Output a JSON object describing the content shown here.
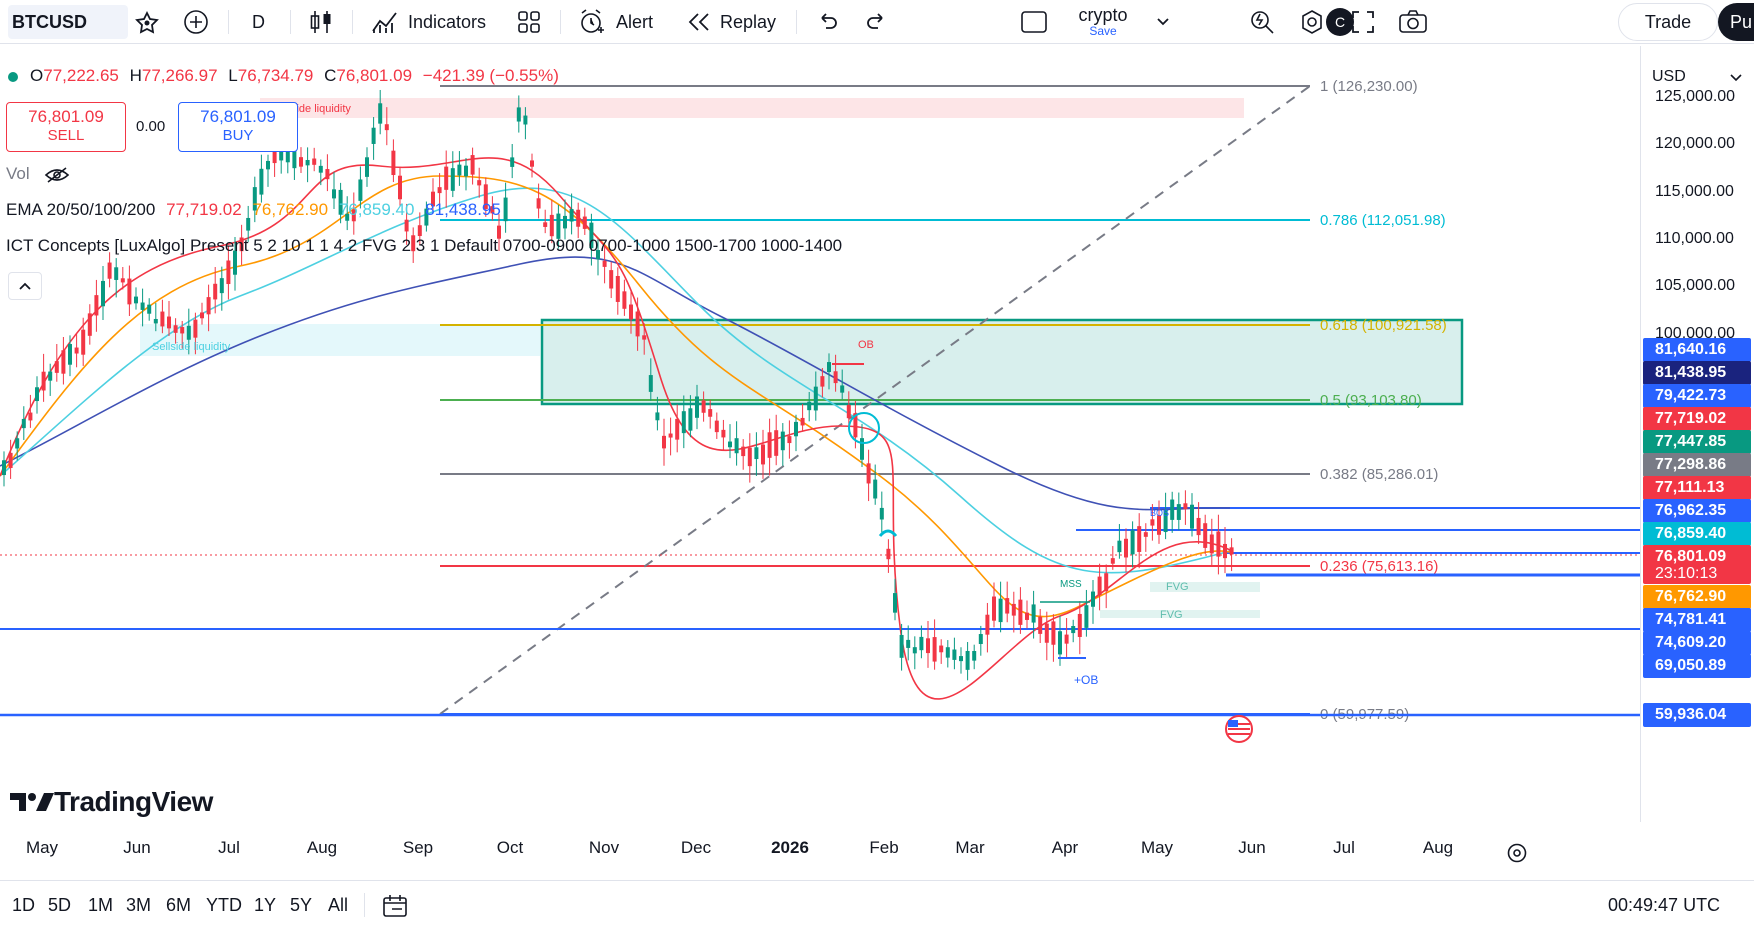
{
  "toolbar": {
    "symbol": "BTCUSD",
    "interval": "D",
    "indicators_label": "Indicators",
    "alert_label": "Alert",
    "replay_label": "Replay",
    "layout_name": "crypto",
    "save_label": "Save",
    "avatar_letter": "C",
    "trade_label": "Trade",
    "publish_label": "Pu"
  },
  "legend": {
    "open_key": "O",
    "open": "77,222.65",
    "high_key": "H",
    "high": "77,266.97",
    "low_key": "L",
    "low": "76,734.79",
    "close_key": "C",
    "close": "76,801.09",
    "change": "−421.39 (−0.55%)",
    "sell_price": "76,801.09",
    "sell_label": "SELL",
    "spread": "0.00",
    "buy_price": "76,801.09",
    "buy_label": "BUY",
    "vol_label": "Vol",
    "ema_label": "EMA 20/50/100/200",
    "ema_values": [
      "77,719.02",
      "76,762.90",
      "76,859.40",
      "81,438.95"
    ],
    "ema_colors": [
      "#f23645",
      "#ff9800",
      "#4dd0e1",
      "#2962ff"
    ],
    "ict_label": "ICT Concepts [LuxAlgo] Present 5 2 10 1 1 4 2 FVG 2 3 1 Default 0700-0900 0700-1000 1500-1700 1000-1400"
  },
  "chart_data": {
    "type": "candlestick",
    "symbol": "BTCUSD",
    "interval": "1D",
    "currency": "USD",
    "y_ticks": [
      "125,000.00",
      "120,000.00",
      "115,000.00",
      "110,000.00",
      "105,000.00",
      "100,000.00"
    ],
    "x_ticks": [
      "May",
      "Jun",
      "Jul",
      "Aug",
      "Sep",
      "Oct",
      "Nov",
      "Dec",
      "2026",
      "Feb",
      "Mar",
      "Apr",
      "May",
      "Jun",
      "Jul",
      "Aug"
    ],
    "fib_levels": [
      {
        "label": "1 (126,230.00)",
        "price": 126230.0,
        "color": "#787b86"
      },
      {
        "label": "0.786 (112,051.98)",
        "price": 112051.98,
        "color": "#00bcd4"
      },
      {
        "label": "0.618 (100,921.58)",
        "price": 100921.58,
        "color": "#d4b300"
      },
      {
        "label": "0.5 (93,103.80)",
        "price": 93103.8,
        "color": "#4caf50"
      },
      {
        "label": "0.382 (85,286.01)",
        "price": 85286.01,
        "color": "#787b86"
      },
      {
        "label": "0.236 (75,613.16)",
        "price": 75613.16,
        "color": "#f23645"
      },
      {
        "label": "0 (59,977.59)",
        "price": 59977.59,
        "color": "#2962ff"
      }
    ],
    "annotations": [
      "Buyside liquidity",
      "Sellside liquidity",
      "OB",
      "+OB",
      "MSS",
      "FVG",
      "FVG",
      "BOS"
    ],
    "price_labels": [
      {
        "value": "81,640.16",
        "color": "#2962ff"
      },
      {
        "value": "81,438.95",
        "color": "#1a237e"
      },
      {
        "value": "79,422.73",
        "color": "#2962ff"
      },
      {
        "value": "77,719.02",
        "color": "#f23645"
      },
      {
        "value": "77,447.85",
        "color": "#089981"
      },
      {
        "value": "77,298.86",
        "color": "#787b86"
      },
      {
        "value": "77,111.13",
        "color": "#f23645"
      },
      {
        "value": "76,962.35",
        "color": "#2962ff"
      },
      {
        "value": "76,859.40",
        "color": "#00bcd4"
      },
      {
        "value": "76,801.09",
        "color": "#f23645"
      },
      {
        "value": "23:10:13",
        "color": "#f23645"
      },
      {
        "value": "76,762.90",
        "color": "#ff9800"
      },
      {
        "value": "74,781.41",
        "color": "#2962ff"
      },
      {
        "value": "74,609.20",
        "color": "#2962ff"
      },
      {
        "value": "69,050.89",
        "color": "#2962ff"
      },
      {
        "value": "59,936.04",
        "color": "#2962ff"
      }
    ]
  },
  "bottombar": {
    "ranges": [
      "1D",
      "5D",
      "1M",
      "3M",
      "6M",
      "YTD",
      "1Y",
      "5Y",
      "All"
    ],
    "clock": "00:49:47 UTC"
  },
  "branding": {
    "logo_text": "TradingView"
  }
}
